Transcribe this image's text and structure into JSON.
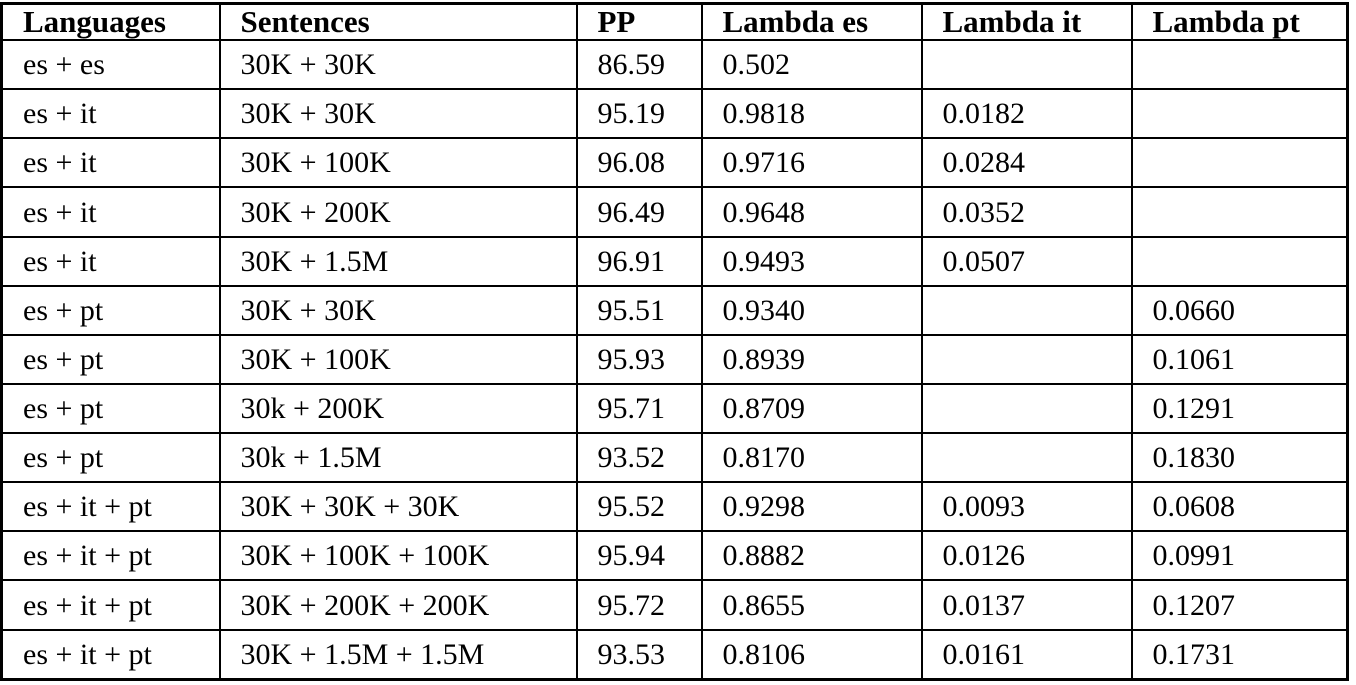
{
  "table": {
    "columns": [
      "Languages",
      "Sentences",
      "PP",
      "Lambda es",
      "Lambda it",
      "Lambda pt"
    ],
    "rows": [
      [
        "es + es",
        "30K + 30K",
        "86.59",
        "0.502",
        "",
        ""
      ],
      [
        "es + it",
        "30K + 30K",
        "95.19",
        "0.9818",
        "0.0182",
        ""
      ],
      [
        "es + it",
        "30K + 100K",
        "96.08",
        "0.9716",
        "0.0284",
        ""
      ],
      [
        "es + it",
        "30K + 200K",
        "96.49",
        "0.9648",
        "0.0352",
        ""
      ],
      [
        "es + it",
        "30K + 1.5M",
        "96.91",
        "0.9493",
        "0.0507",
        ""
      ],
      [
        "es + pt",
        "30K + 30K",
        "95.51",
        "0.9340",
        "",
        "0.0660"
      ],
      [
        "es + pt",
        "30K + 100K",
        "95.93",
        "0.8939",
        "",
        "0.1061"
      ],
      [
        "es + pt",
        "30k + 200K",
        "95.71",
        "0.8709",
        "",
        "0.1291"
      ],
      [
        "es + pt",
        "30k + 1.5M",
        "93.52",
        "0.8170",
        "",
        "0.1830"
      ],
      [
        "es + it + pt",
        "30K + 30K + 30K",
        "95.52",
        "0.9298",
        "0.0093",
        "0.0608"
      ],
      [
        "es + it + pt",
        "30K + 100K + 100K",
        "95.94",
        "0.8882",
        "0.0126",
        "0.0991"
      ],
      [
        "es + it + pt",
        "30K + 200K + 200K",
        "95.72",
        "0.8655",
        "0.0137",
        "0.1207"
      ],
      [
        "es + it + pt",
        "30K + 1.5M + 1.5M",
        "93.53",
        "0.8106",
        "0.0161",
        "0.1731"
      ]
    ]
  },
  "colors": {
    "text": "#000000",
    "border": "#000000",
    "background": "#ffffff"
  }
}
